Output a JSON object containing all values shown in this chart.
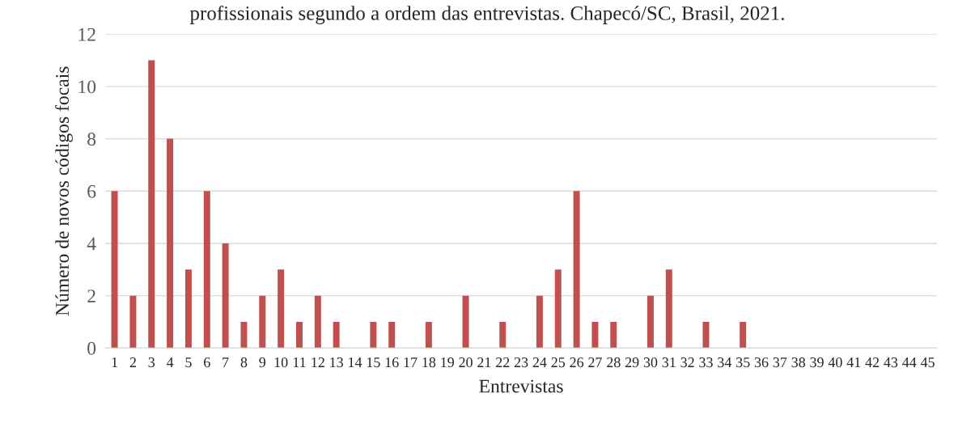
{
  "chart_data": {
    "type": "bar",
    "title": "profissionais segundo a ordem das entrevistas. Chapecó/SC, Brasil, 2021.",
    "xlabel": "Entrevistas",
    "ylabel": "Número de novos códigos focais",
    "categories": [
      "1",
      "2",
      "3",
      "4",
      "5",
      "6",
      "7",
      "8",
      "9",
      "10",
      "11",
      "12",
      "13",
      "14",
      "15",
      "16",
      "17",
      "18",
      "19",
      "20",
      "21",
      "22",
      "23",
      "24",
      "25",
      "26",
      "27",
      "28",
      "29",
      "30",
      "31",
      "32",
      "33",
      "34",
      "35",
      "36",
      "37",
      "38",
      "39",
      "40",
      "41",
      "42",
      "43",
      "44",
      "45"
    ],
    "values": [
      6,
      2,
      11,
      8,
      3,
      6,
      4,
      1,
      2,
      3,
      1,
      2,
      1,
      0,
      1,
      1,
      0,
      1,
      0,
      2,
      0,
      1,
      0,
      2,
      3,
      6,
      1,
      1,
      0,
      2,
      3,
      0,
      1,
      0,
      1,
      0,
      0,
      0,
      0,
      0,
      0,
      0,
      0,
      0,
      0
    ],
    "color": "#c0504d",
    "ylim": [
      0,
      12
    ],
    "yticks": [
      0,
      2,
      4,
      6,
      8,
      10,
      12
    ],
    "grid": "y",
    "legend": false
  }
}
